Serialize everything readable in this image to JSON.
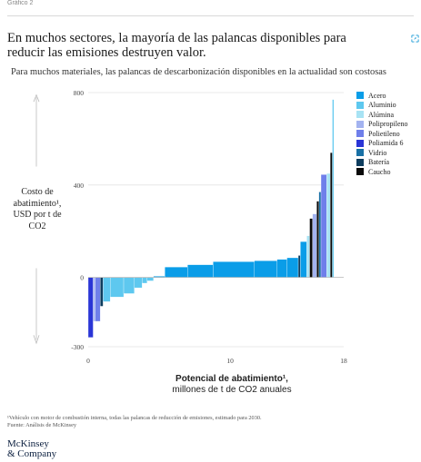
{
  "header": {
    "label": "Gráfico 2",
    "headline": "En muchos sectores, la mayoría de las palancas disponibles para reducir las emisiones destruyen valor.",
    "share_icon": "share-icon"
  },
  "chart_data": {
    "type": "bar",
    "title": "Para muchos materiales, las palancas de descarbonización disponibles en la actualidad son costosas",
    "ylabel": "Costo de abatimiento¹, USD por t de CO2",
    "xlabel_bold": "Potencial de abatimiento¹,",
    "xlabel_normal": "millones de t de CO2 anuales",
    "xlim": [
      0,
      18
    ],
    "ylim": [
      -300,
      800
    ],
    "xticks": [
      0,
      10,
      18
    ],
    "yticks": [
      -300,
      0,
      400,
      800
    ],
    "grid": "horizontal",
    "legend_position": "right",
    "series": [
      {
        "name": "Acero",
        "color": "#0a9de8"
      },
      {
        "name": "Aluminio",
        "color": "#5ec8ef"
      },
      {
        "name": "Alúmina",
        "color": "#a8e3f4"
      },
      {
        "name": "Polipropileno",
        "color": "#a3b3f0"
      },
      {
        "name": "Polietileno",
        "color": "#6f7fea"
      },
      {
        "name": "Poliamida 6",
        "color": "#2a35d6"
      },
      {
        "name": "Vidrio",
        "color": "#1971a6"
      },
      {
        "name": "Batería",
        "color": "#0e3d5e"
      },
      {
        "name": "Caucho",
        "color": "#0a0a0a"
      }
    ],
    "bars": [
      {
        "x0": 0.0,
        "x1": 0.35,
        "value": -260,
        "series": "Poliamida 6"
      },
      {
        "x0": 0.35,
        "x1": 0.5,
        "value": -190,
        "series": "Polipropileno"
      },
      {
        "x0": 0.5,
        "x1": 0.85,
        "value": -190,
        "series": "Polietileno"
      },
      {
        "x0": 0.85,
        "x1": 1.05,
        "value": -125,
        "series": "Batería"
      },
      {
        "x0": 1.05,
        "x1": 1.55,
        "value": -105,
        "series": "Aluminio"
      },
      {
        "x0": 1.55,
        "x1": 2.5,
        "value": -85,
        "series": "Aluminio"
      },
      {
        "x0": 2.5,
        "x1": 3.25,
        "value": -70,
        "series": "Aluminio"
      },
      {
        "x0": 3.25,
        "x1": 3.8,
        "value": -45,
        "series": "Aluminio"
      },
      {
        "x0": 3.8,
        "x1": 4.15,
        "value": -25,
        "series": "Aluminio"
      },
      {
        "x0": 4.15,
        "x1": 4.6,
        "value": -15,
        "series": "Aluminio"
      },
      {
        "x0": 4.6,
        "x1": 5.4,
        "value": 5,
        "series": "Acero"
      },
      {
        "x0": 5.4,
        "x1": 7.0,
        "value": 45,
        "series": "Acero"
      },
      {
        "x0": 7.0,
        "x1": 8.8,
        "value": 55,
        "series": "Acero"
      },
      {
        "x0": 8.8,
        "x1": 11.7,
        "value": 68,
        "series": "Acero"
      },
      {
        "x0": 11.7,
        "x1": 13.3,
        "value": 72,
        "series": "Acero"
      },
      {
        "x0": 13.3,
        "x1": 14.0,
        "value": 78,
        "series": "Acero"
      },
      {
        "x0": 14.0,
        "x1": 14.8,
        "value": 85,
        "series": "Acero"
      },
      {
        "x0": 14.8,
        "x1": 14.95,
        "value": 95,
        "series": "Batería"
      },
      {
        "x0": 14.95,
        "x1": 15.4,
        "value": 155,
        "series": "Acero"
      },
      {
        "x0": 15.4,
        "x1": 15.6,
        "value": 180,
        "series": "Alúmina"
      },
      {
        "x0": 15.6,
        "x1": 15.8,
        "value": 255,
        "series": "Caucho"
      },
      {
        "x0": 15.8,
        "x1": 16.1,
        "value": 275,
        "series": "Polipropileno"
      },
      {
        "x0": 16.1,
        "x1": 16.25,
        "value": 330,
        "series": "Caucho"
      },
      {
        "x0": 16.25,
        "x1": 16.4,
        "value": 370,
        "series": "Vidrio"
      },
      {
        "x0": 16.4,
        "x1": 16.8,
        "value": 445,
        "series": "Polietileno"
      },
      {
        "x0": 16.8,
        "x1": 17.05,
        "value": 450,
        "series": "Alúmina"
      },
      {
        "x0": 17.05,
        "x1": 17.2,
        "value": 540,
        "series": "Caucho"
      },
      {
        "x0": 17.2,
        "x1": 17.3,
        "value": 770,
        "series": "Aluminio"
      }
    ]
  },
  "footnote": {
    "line1": "¹Vehículo con motor de combustión interna, todas las palancas de reducción de emisiones, estimado para 2030.",
    "line2": "Fuente: Análisis de McKinsey"
  },
  "logo": {
    "line1": "McKinsey",
    "line2": "& Company"
  }
}
